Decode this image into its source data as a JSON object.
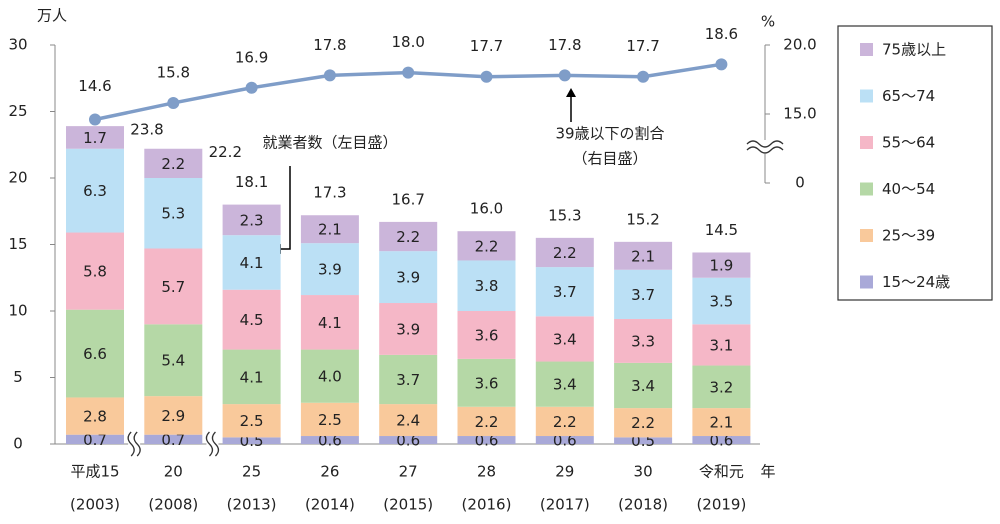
{
  "chart_data": {
    "type": "stacked-bar-line",
    "y_unit": "万人",
    "y2_unit": "%",
    "x_suffix": "年",
    "categories": [
      "平成15",
      "20",
      "25",
      "26",
      "27",
      "28",
      "29",
      "30",
      "令和元"
    ],
    "category_years": [
      "(2003)",
      "(2008)",
      "(2013)",
      "(2014)",
      "(2015)",
      "(2016)",
      "(2017)",
      "(2018)",
      "(2019)"
    ],
    "ylim": [
      0,
      30
    ],
    "yticks": [
      0,
      5,
      10,
      15,
      20,
      25,
      30
    ],
    "y2lim": [
      10,
      20
    ],
    "y2ticks": [
      0,
      {
        "value": 15,
        "label": "15.0"
      },
      {
        "value": 20,
        "label": "20.0"
      }
    ],
    "y2_break": true,
    "x_breaks_after": [
      0,
      1
    ],
    "series": [
      {
        "name": "15～24歳",
        "color": "#a9a9d8",
        "values": [
          0.7,
          0.7,
          0.5,
          0.6,
          0.6,
          0.6,
          0.6,
          0.5,
          0.6
        ]
      },
      {
        "name": "25～39",
        "color": "#f9c99b",
        "values": [
          2.8,
          2.9,
          2.5,
          2.5,
          2.4,
          2.2,
          2.2,
          2.2,
          2.1
        ]
      },
      {
        "name": "40～54",
        "color": "#b5d8a6",
        "values": [
          6.6,
          5.4,
          4.1,
          4.0,
          3.7,
          3.6,
          3.4,
          3.4,
          3.2
        ],
        "value_labels": [
          "6.6",
          "5.4",
          "4.1",
          "4.0",
          "3.7",
          "3.6",
          "3.4",
          "3.4",
          "3.2"
        ]
      },
      {
        "name": "55～64",
        "color": "#f5b7c7",
        "values": [
          5.8,
          5.7,
          4.5,
          4.1,
          3.9,
          3.6,
          3.4,
          3.3,
          3.1
        ]
      },
      {
        "name": "65～74",
        "color": "#bbe0f5",
        "values": [
          6.3,
          5.3,
          4.1,
          3.9,
          3.9,
          3.8,
          3.7,
          3.7,
          3.5
        ]
      },
      {
        "name": "75歳以上",
        "color": "#cbb5da",
        "values": [
          1.7,
          2.2,
          2.3,
          2.1,
          2.2,
          2.2,
          2.2,
          2.1,
          1.9
        ]
      },
      {
        "name": "39歳以下の割合",
        "type": "line",
        "axis": "y2",
        "color": "#7f9dc8",
        "values": [
          14.6,
          15.8,
          16.9,
          17.8,
          18.0,
          17.7,
          17.8,
          17.7,
          18.6
        ],
        "value_labels": [
          "14.6",
          "15.8",
          "16.9",
          "17.8",
          "18.0",
          "17.7",
          "17.8",
          "17.7",
          "18.6"
        ]
      }
    ],
    "totals": [
      "23.8",
      "22.2",
      "18.1",
      "17.3",
      "16.7",
      "16.0",
      "15.3",
      "15.2",
      "14.5"
    ],
    "annotations": [
      "就業者数（左目盛）",
      "39歳以下の割合",
      "（右目盛）"
    ]
  }
}
